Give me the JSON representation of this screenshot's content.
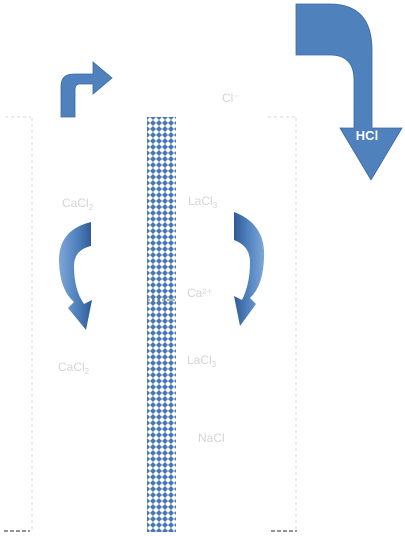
{
  "colors": {
    "arrow_fill": "#4f81bd",
    "arrow_dark": "#36609a",
    "arrow_light": "#7fa6d8",
    "membrane": "#4a78b4",
    "box_outline": "#d9d9d9",
    "faint_text": "#d4d4d4"
  },
  "labels": {
    "hcl": "HCl",
    "top_center": "Cl⁻",
    "left_upper": "CaCl",
    "left_upper_sub": "2",
    "right_upper": "LaCl",
    "right_upper_sub": "3",
    "mid_right": "Ca²⁺",
    "left_lower": "CaCl",
    "left_lower_sub": "2",
    "right_lower": "LaCl",
    "right_lower_sub": "3",
    "bottom_right": "NaCl"
  },
  "icons": {
    "arrows": [
      "curved-up-right-arrow",
      "bent-down-arrow",
      "circular-arrow-left",
      "circular-arrow-right"
    ]
  }
}
